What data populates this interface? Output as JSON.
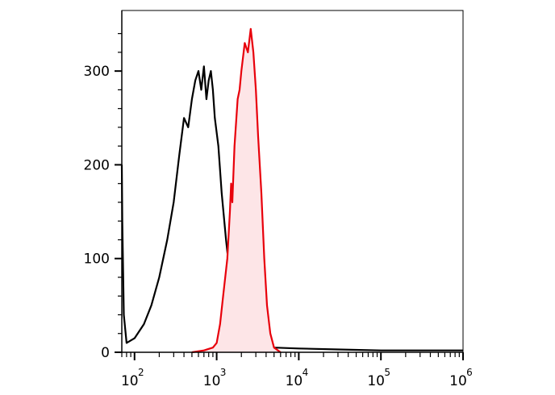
{
  "chart_data": {
    "type": "line",
    "title": "",
    "xlabel": "",
    "ylabel": "",
    "x_scale": "log10",
    "xlim": [
      70,
      1000000
    ],
    "ylim": [
      0,
      350
    ],
    "grid": false,
    "legend": "none",
    "x_ticks": [
      {
        "value": 100,
        "base": "10",
        "exp": "2"
      },
      {
        "value": 1000,
        "base": "10",
        "exp": "3"
      },
      {
        "value": 10000,
        "base": "10",
        "exp": "4"
      },
      {
        "value": 100000,
        "base": "10",
        "exp": "5"
      },
      {
        "value": 1000000,
        "base": "10",
        "exp": "6"
      }
    ],
    "y_ticks": [
      {
        "value": 0,
        "label": "0"
      },
      {
        "value": 100,
        "label": "100"
      },
      {
        "value": 200,
        "label": "200"
      },
      {
        "value": 300,
        "label": "300"
      }
    ],
    "series": [
      {
        "color": "#000000",
        "fill": "none",
        "points": [
          [
            70,
            200
          ],
          [
            71,
            140
          ],
          [
            74,
            40
          ],
          [
            80,
            10
          ],
          [
            100,
            15
          ],
          [
            130,
            30
          ],
          [
            160,
            50
          ],
          [
            200,
            80
          ],
          [
            250,
            120
          ],
          [
            300,
            160
          ],
          [
            350,
            210
          ],
          [
            400,
            250
          ],
          [
            450,
            240
          ],
          [
            500,
            270
          ],
          [
            550,
            290
          ],
          [
            600,
            300
          ],
          [
            650,
            280
          ],
          [
            700,
            305
          ],
          [
            750,
            270
          ],
          [
            800,
            290
          ],
          [
            850,
            300
          ],
          [
            900,
            280
          ],
          [
            950,
            250
          ],
          [
            1050,
            220
          ],
          [
            1150,
            170
          ],
          [
            1300,
            120
          ],
          [
            1500,
            70
          ],
          [
            1700,
            40
          ],
          [
            2000,
            20
          ],
          [
            3000,
            8
          ],
          [
            5000,
            5
          ],
          [
            10000,
            4
          ],
          [
            30000,
            3
          ],
          [
            100000,
            2
          ],
          [
            1000000,
            2
          ]
        ]
      },
      {
        "color": "#e8000b",
        "fill": "#fde5e7",
        "points": [
          [
            500,
            0
          ],
          [
            700,
            2
          ],
          [
            900,
            5
          ],
          [
            1000,
            10
          ],
          [
            1100,
            30
          ],
          [
            1200,
            60
          ],
          [
            1350,
            100
          ],
          [
            1450,
            150
          ],
          [
            1500,
            180
          ],
          [
            1550,
            160
          ],
          [
            1650,
            220
          ],
          [
            1800,
            270
          ],
          [
            1900,
            280
          ],
          [
            2000,
            300
          ],
          [
            2200,
            330
          ],
          [
            2400,
            320
          ],
          [
            2600,
            345
          ],
          [
            2800,
            320
          ],
          [
            3000,
            280
          ],
          [
            3200,
            230
          ],
          [
            3500,
            170
          ],
          [
            3800,
            100
          ],
          [
            4100,
            50
          ],
          [
            4500,
            20
          ],
          [
            5000,
            5
          ],
          [
            6000,
            0
          ]
        ]
      }
    ]
  }
}
